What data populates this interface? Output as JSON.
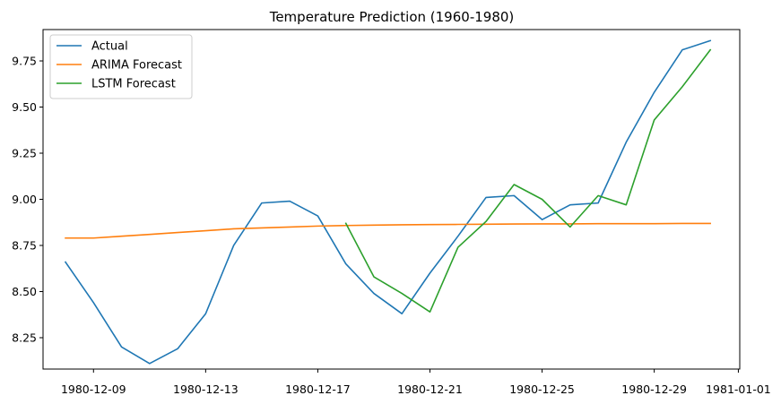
{
  "chart_data": {
    "type": "line",
    "title": "Temperature Prediction (1960-1980)",
    "xlabel": "",
    "ylabel": "",
    "x_dates": [
      "1980-12-08",
      "1980-12-09",
      "1980-12-10",
      "1980-12-11",
      "1980-12-12",
      "1980-12-13",
      "1980-12-14",
      "1980-12-15",
      "1980-12-16",
      "1980-12-17",
      "1980-12-18",
      "1980-12-19",
      "1980-12-20",
      "1980-12-21",
      "1980-12-22",
      "1980-12-23",
      "1980-12-24",
      "1980-12-25",
      "1980-12-26",
      "1980-12-27",
      "1980-12-28",
      "1980-12-29",
      "1980-12-30",
      "1980-12-31"
    ],
    "xticks": [
      "1980-12-09",
      "1980-12-13",
      "1980-12-17",
      "1980-12-21",
      "1980-12-25",
      "1980-12-29",
      "1981-01-01"
    ],
    "xlim": [
      "1980-12-07",
      "1981-01-01"
    ],
    "ylim": [
      8.08,
      9.92
    ],
    "yticks": [
      "8.25",
      "8.50",
      "8.75",
      "9.00",
      "9.25",
      "9.50",
      "9.75"
    ],
    "grid": false,
    "legend_position": "top-left",
    "series": [
      {
        "name": "Actual",
        "color": "#1f77b4",
        "x": [
          "1980-12-08",
          "1980-12-09",
          "1980-12-10",
          "1980-12-11",
          "1980-12-12",
          "1980-12-13",
          "1980-12-14",
          "1980-12-15",
          "1980-12-16",
          "1980-12-17",
          "1980-12-18",
          "1980-12-19",
          "1980-12-20",
          "1980-12-21",
          "1980-12-22",
          "1980-12-23",
          "1980-12-24",
          "1980-12-25",
          "1980-12-26",
          "1980-12-27",
          "1980-12-28",
          "1980-12-29",
          "1980-12-30",
          "1980-12-31"
        ],
        "values": [
          8.66,
          8.44,
          8.2,
          8.11,
          8.19,
          8.38,
          8.75,
          8.98,
          8.99,
          8.91,
          8.65,
          8.49,
          8.38,
          8.6,
          8.8,
          9.01,
          9.02,
          8.89,
          8.97,
          8.98,
          9.31,
          9.58,
          9.81,
          9.86
        ]
      },
      {
        "name": "ARIMA Forecast",
        "color": "#ff7f0e",
        "x": [
          "1980-12-08",
          "1980-12-09",
          "1980-12-10",
          "1980-12-11",
          "1980-12-12",
          "1980-12-13",
          "1980-12-14",
          "1980-12-15",
          "1980-12-16",
          "1980-12-17",
          "1980-12-18",
          "1980-12-19",
          "1980-12-20",
          "1980-12-21",
          "1980-12-22",
          "1980-12-23",
          "1980-12-24",
          "1980-12-25",
          "1980-12-26",
          "1980-12-27",
          "1980-12-28",
          "1980-12-29",
          "1980-12-30",
          "1980-12-31"
        ],
        "values": [
          8.79,
          8.79,
          8.8,
          8.81,
          8.82,
          8.83,
          8.84,
          8.845,
          8.85,
          8.855,
          8.858,
          8.86,
          8.862,
          8.863,
          8.864,
          8.865,
          8.866,
          8.867,
          8.867,
          8.868,
          8.868,
          8.868,
          8.869,
          8.869
        ]
      },
      {
        "name": "LSTM Forecast",
        "color": "#2ca02c",
        "x": [
          "1980-12-18",
          "1980-12-19",
          "1980-12-20",
          "1980-12-21",
          "1980-12-22",
          "1980-12-23",
          "1980-12-24",
          "1980-12-25",
          "1980-12-26",
          "1980-12-27",
          "1980-12-28",
          "1980-12-29",
          "1980-12-30",
          "1980-12-31"
        ],
        "values": [
          8.87,
          8.58,
          8.49,
          8.39,
          8.74,
          8.88,
          9.08,
          9.0,
          8.85,
          9.02,
          8.97,
          9.43,
          9.61,
          9.81
        ]
      }
    ]
  }
}
